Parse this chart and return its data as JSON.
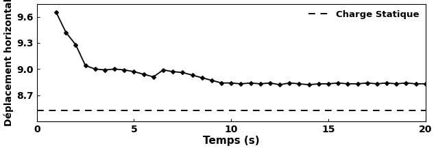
{
  "title": "",
  "xlabel": "Temps (s)",
  "ylabel_full": "Déplacement horizontal",
  "ylim": [
    8.4,
    9.75
  ],
  "xlim": [
    0,
    20
  ],
  "xticks": [
    0,
    5,
    10,
    15,
    20
  ],
  "yticks": [
    8.7,
    9.0,
    9.3,
    9.6
  ],
  "static_value": 8.525,
  "legend_label_static": "Charge Statique",
  "dynamic_x": [
    1,
    1.5,
    2,
    2.5,
    3,
    3.5,
    4,
    4.5,
    5,
    5.5,
    6,
    6.5,
    7,
    7.5,
    8,
    8.5,
    9,
    9.5,
    10,
    10.5,
    11,
    11.5,
    12,
    12.5,
    13,
    13.5,
    14,
    14.5,
    15,
    15.5,
    16,
    16.5,
    17,
    17.5,
    18,
    18.5,
    19,
    19.5,
    20
  ],
  "dynamic_y": [
    9.65,
    9.42,
    9.28,
    9.04,
    9.0,
    8.99,
    9.0,
    8.99,
    8.97,
    8.94,
    8.91,
    8.99,
    8.97,
    8.96,
    8.93,
    8.9,
    8.87,
    8.84,
    8.84,
    8.83,
    8.84,
    8.83,
    8.84,
    8.82,
    8.84,
    8.83,
    8.82,
    8.83,
    8.83,
    8.84,
    8.83,
    8.83,
    8.84,
    8.83,
    8.84,
    8.83,
    8.84,
    8.83,
    8.83
  ],
  "line_color": "#000000",
  "static_color": "#000000",
  "bg_color": "#ffffff",
  "marker": "D",
  "marker_size": 3.0,
  "line_width": 1.3
}
